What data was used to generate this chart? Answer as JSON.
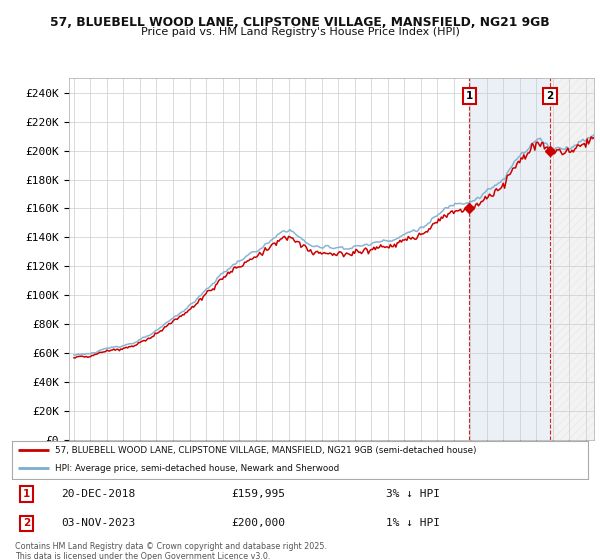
{
  "title1": "57, BLUEBELL WOOD LANE, CLIPSTONE VILLAGE, MANSFIELD, NG21 9GB",
  "title2": "Price paid vs. HM Land Registry's House Price Index (HPI)",
  "ylabel_ticks": [
    "£0",
    "£20K",
    "£40K",
    "£60K",
    "£80K",
    "£100K",
    "£120K",
    "£140K",
    "£160K",
    "£180K",
    "£200K",
    "£220K",
    "£240K"
  ],
  "ytick_values": [
    0,
    20000,
    40000,
    60000,
    80000,
    100000,
    120000,
    140000,
    160000,
    180000,
    200000,
    220000,
    240000
  ],
  "ylim": [
    0,
    250000
  ],
  "xlim_start": 1994.7,
  "xlim_end": 2026.5,
  "legend_line1": "57, BLUEBELL WOOD LANE, CLIPSTONE VILLAGE, MANSFIELD, NG21 9GB (semi-detached house)",
  "legend_line2": "HPI: Average price, semi-detached house, Newark and Sherwood",
  "annotation1_date": "20-DEC-2018",
  "annotation1_price": "£159,995",
  "annotation1_hpi": "3% ↓ HPI",
  "annotation2_date": "03-NOV-2023",
  "annotation2_price": "£200,000",
  "annotation2_hpi": "1% ↓ HPI",
  "footer": "Contains HM Land Registry data © Crown copyright and database right 2025.\nThis data is licensed under the Open Government Licence v3.0.",
  "line1_color": "#cc0000",
  "line2_color": "#7aadcf",
  "plot_bg": "#ffffff",
  "grid_color": "#cccccc",
  "shade_color": "#dce6f1",
  "hatch_color": "#bbbbbb"
}
